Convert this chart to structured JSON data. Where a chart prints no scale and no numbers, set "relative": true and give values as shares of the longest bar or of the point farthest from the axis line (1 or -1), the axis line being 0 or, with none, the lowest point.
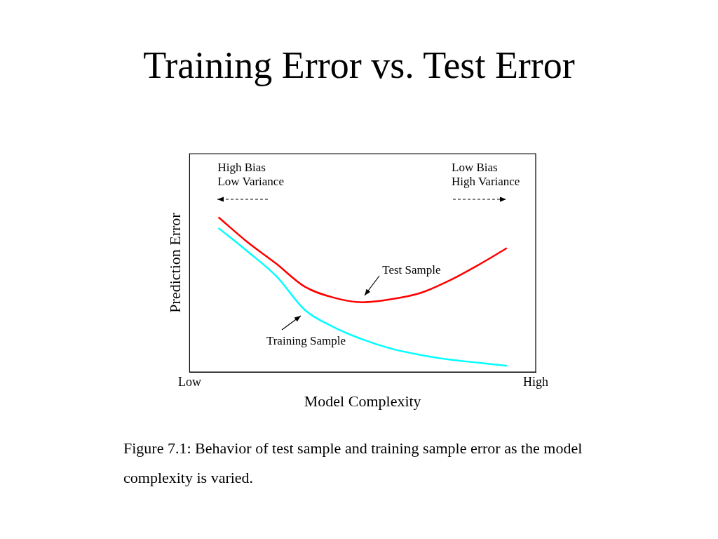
{
  "chart_data": {
    "type": "line",
    "title": "Training Error vs. Test Error",
    "xlabel": "Model Complexity",
    "ylabel": "Prediction Error",
    "relative": true,
    "grid": false,
    "legend": false,
    "categories": [
      "Low",
      null,
      null,
      null,
      null,
      null,
      null,
      null,
      null,
      null,
      null,
      null,
      "High"
    ],
    "series": [
      {
        "name": "Test Sample",
        "color": "#ff0000",
        "values": [
          null,
          1,
          0.84,
          0.7,
          0.55,
          0.48,
          0.45,
          0.47,
          0.51,
          0.59,
          0.69,
          0.8,
          null
        ]
      },
      {
        "name": "Training Sample",
        "color": "#00ffff",
        "values": [
          null,
          0.93,
          0.78,
          0.62,
          0.4,
          0.29,
          0.21,
          0.15,
          0.11,
          0.08,
          0.06,
          0.04,
          null
        ]
      }
    ],
    "annotations": [
      "High Bias\nLow Variance",
      "Low Bias\nHigh Variance",
      "Figure 7.1: Behavior of test sample and training sample error as the model complexity is varied."
    ]
  }
}
